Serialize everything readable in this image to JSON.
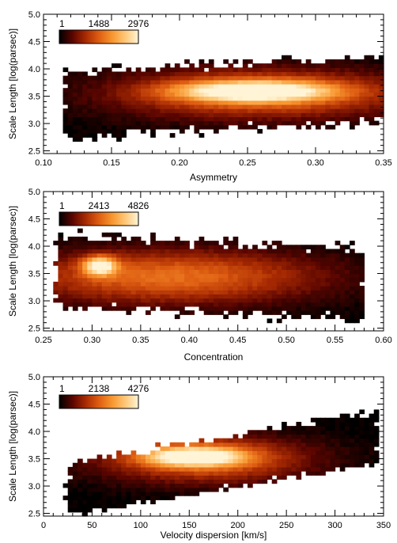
{
  "colormap": [
    "#000000",
    "#5a0500",
    "#a82a02",
    "#de5d12",
    "#f7962f",
    "#ffc777",
    "#fff4d6"
  ],
  "chart_data": [
    {
      "type": "heatmap",
      "xlabel": "Asymmetry",
      "ylabel": "Scale Length [log(parsec)]",
      "xlim": [
        0.1,
        0.35
      ],
      "ylim": [
        2.45,
        5.0
      ],
      "x_ticks": [
        "0.10",
        "0.15",
        "0.20",
        "0.25",
        "0.30",
        "0.35"
      ],
      "y_ticks": [
        "2.5",
        "3.0",
        "3.5",
        "4.0",
        "4.5",
        "5.0"
      ],
      "colorbar": {
        "labels": [
          "1",
          "1488",
          "2976"
        ],
        "min": 1,
        "max": 2976
      },
      "density_model": {
        "x_range": [
          0.115,
          0.35
        ],
        "y_center_left": 3.35,
        "y_center_right": 3.65,
        "y_halfwidth": 0.6,
        "peak": {
          "x": 0.255,
          "y": 3.6,
          "sx": 0.04,
          "sy": 0.13
        },
        "halo": {
          "x": 0.26,
          "y": 3.55,
          "sx": 0.075,
          "sy": 0.32
        }
      }
    },
    {
      "type": "heatmap",
      "xlabel": "Concentration",
      "ylabel": "Scale Length [log(parsec)]",
      "xlim": [
        0.25,
        0.6
      ],
      "ylim": [
        2.45,
        5.0
      ],
      "x_ticks": [
        "0.25",
        "0.30",
        "0.35",
        "0.40",
        "0.45",
        "0.50",
        "0.55",
        "0.60"
      ],
      "y_ticks": [
        "2.5",
        "3.0",
        "3.5",
        "4.0",
        "4.5",
        "5.0"
      ],
      "colorbar": {
        "labels": [
          "1",
          "2413",
          "4826"
        ],
        "min": 1,
        "max": 4826
      },
      "density_model": {
        "x_range": [
          0.265,
          0.58
        ],
        "y_center_left": 3.55,
        "y_center_right": 3.3,
        "y_halfwidth": 0.65,
        "peak": {
          "x": 0.308,
          "y": 3.65,
          "sx": 0.012,
          "sy": 0.12
        },
        "halo": {
          "x": 0.38,
          "y": 3.45,
          "sx": 0.11,
          "sy": 0.35
        }
      }
    },
    {
      "type": "heatmap",
      "xlabel": "Velocity dispersion [km/s]",
      "ylabel": "Scale Length [log(parsec)]",
      "xlim": [
        0,
        350
      ],
      "ylim": [
        2.45,
        5.0
      ],
      "x_ticks": [
        "0",
        "50",
        "100",
        "150",
        "200",
        "250",
        "300",
        "350"
      ],
      "y_ticks": [
        "2.5",
        "3.0",
        "3.5",
        "4.0",
        "4.5",
        "5.0"
      ],
      "colorbar": {
        "labels": [
          "1",
          "2138",
          "4276"
        ],
        "min": 1,
        "max": 4276
      },
      "density_model": {
        "x_range": [
          25,
          345
        ],
        "y_center_left": 2.95,
        "y_center_right": 3.9,
        "y_halfwidth": 0.48,
        "peak": {
          "x": 155,
          "y": 3.55,
          "sx": 35,
          "sy": 0.12
        },
        "halo": {
          "x": 165,
          "y": 3.5,
          "sx": 75,
          "sy": 0.3
        }
      }
    }
  ]
}
